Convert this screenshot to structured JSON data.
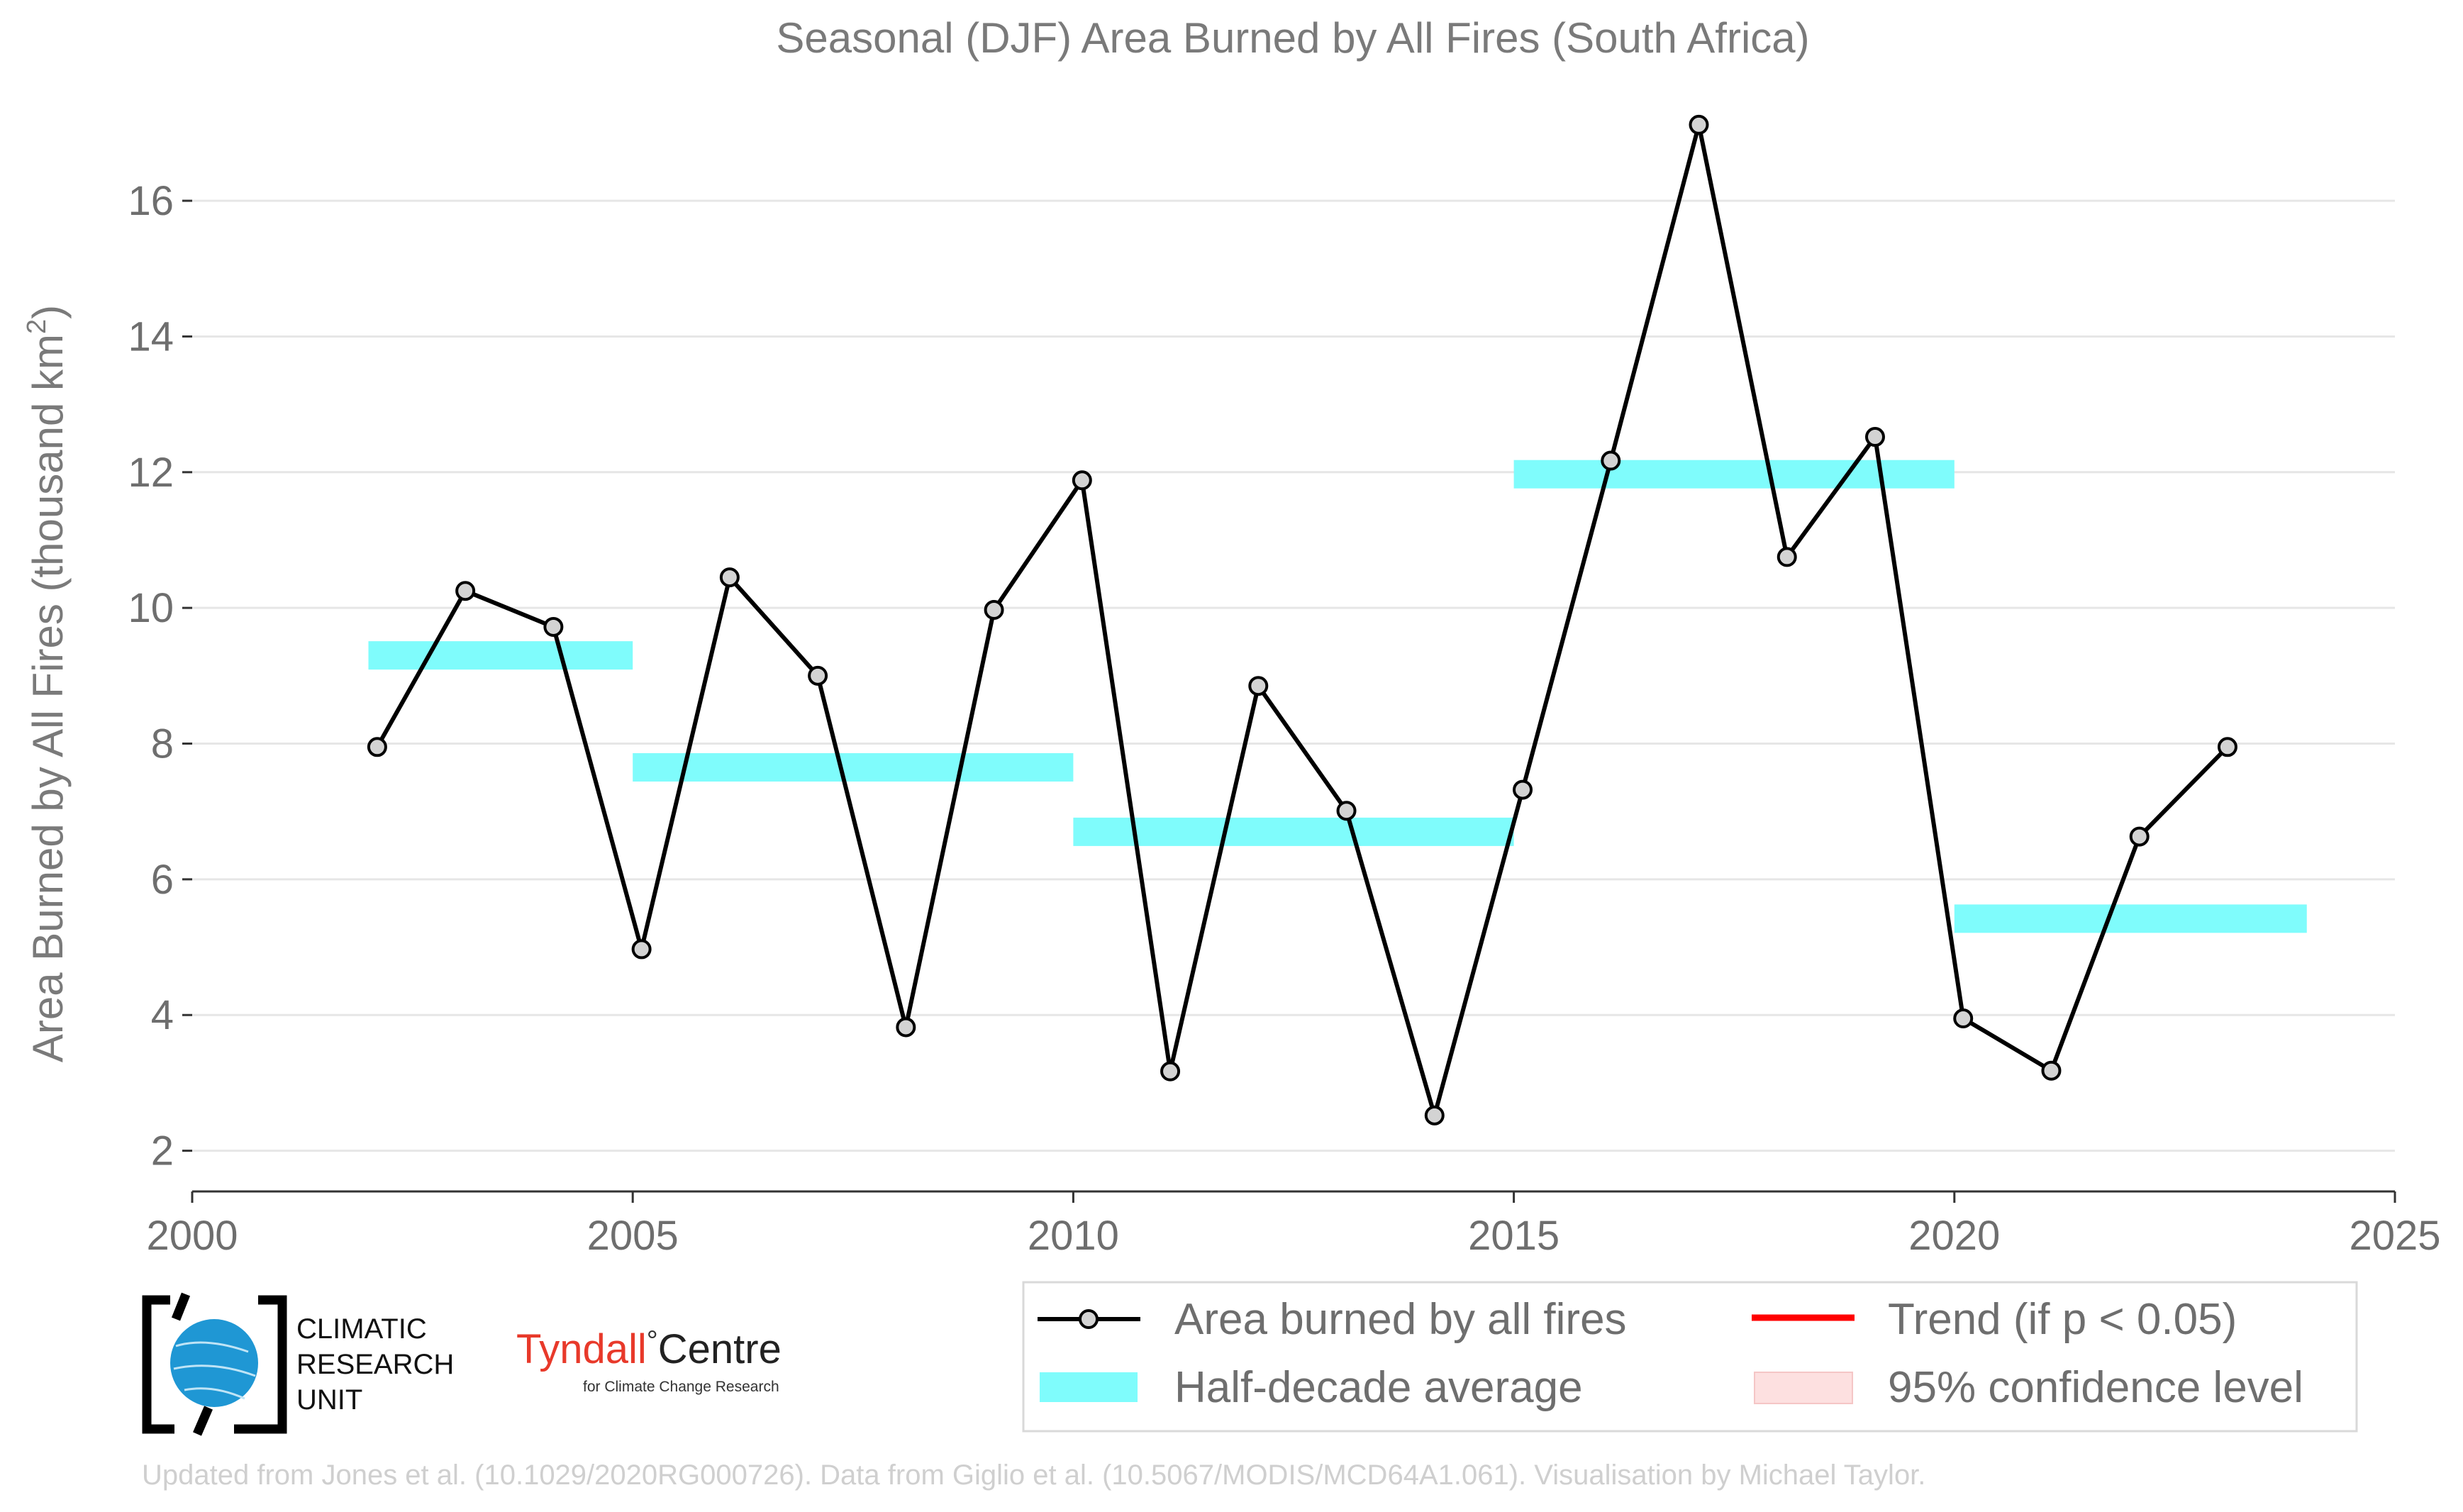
{
  "chart_data": {
    "type": "line",
    "title": "Seasonal (DJF) Area Burned by All Fires (South Africa)",
    "xlabel": "",
    "ylabel": "Area Burned by All Fires (thousand km",
    "ylabel_superscript": "2",
    "ylabel_close": ")",
    "xlim": [
      2000,
      2025
    ],
    "ylim": [
      1.4,
      17.6
    ],
    "xticks": [
      2000,
      2005,
      2010,
      2015,
      2020,
      2025
    ],
    "yticks": [
      2,
      4,
      6,
      8,
      10,
      12,
      14,
      16
    ],
    "grid": "horizontal",
    "legend_position": "bottom-right",
    "series": [
      {
        "name": "Area burned by all fires",
        "kind": "line-markers",
        "color": "#000000",
        "marker_fill": "#d3d3d3",
        "x": [
          2002.1,
          2003.1,
          2004.1,
          2005.1,
          2006.1,
          2007.1,
          2008.1,
          2009.1,
          2010.1,
          2011.1,
          2012.1,
          2013.1,
          2014.1,
          2015.1,
          2016.1,
          2017.1,
          2018.1,
          2019.1,
          2020.1,
          2021.1,
          2022.1,
          2023.1
        ],
        "y": [
          7.95,
          10.25,
          9.72,
          4.97,
          10.45,
          9.0,
          3.82,
          9.97,
          11.88,
          3.17,
          8.85,
          7.01,
          2.52,
          7.32,
          12.17,
          17.12,
          10.75,
          12.52,
          3.95,
          3.18,
          6.63,
          7.95
        ]
      },
      {
        "name": "Half-decade average",
        "kind": "segments",
        "color": "#7ffcfc",
        "segments": [
          {
            "x": [
              2002,
              2005
            ],
            "y": 9.3
          },
          {
            "x": [
              2005,
              2010
            ],
            "y": 7.65
          },
          {
            "x": [
              2010,
              2015
            ],
            "y": 6.7
          },
          {
            "x": [
              2015,
              2020
            ],
            "y": 11.97
          },
          {
            "x": [
              2020,
              2024
            ],
            "y": 5.42
          }
        ]
      }
    ],
    "legend": [
      {
        "label": "Area burned by all fires",
        "kind": "line-marker",
        "color": "#000000"
      },
      {
        "label": "Trend (if p < 0.05)",
        "kind": "line",
        "color": "#ff0000"
      },
      {
        "label": "Half-decade average",
        "kind": "patch",
        "color": "#7ffcfc"
      },
      {
        "label": "95% confidence level",
        "kind": "patch",
        "color": "#fde0e0"
      }
    ]
  },
  "logos": {
    "cru_line1": "CLIMATIC",
    "cru_line2": "RESEARCH",
    "cru_line3": "UNIT",
    "tyndall_main": "Tyndall",
    "tyndall_degree": "°",
    "tyndall_centre": "Centre",
    "tyndall_sub": "for Climate Change Research",
    "tyndall_color": "#e8392a"
  },
  "footer": "Updated from Jones et al. (10.1029/2020RG000726). Data from Giglio et al. (10.5067/MODIS/MCD64A1.061). Visualisation by Michael Taylor."
}
